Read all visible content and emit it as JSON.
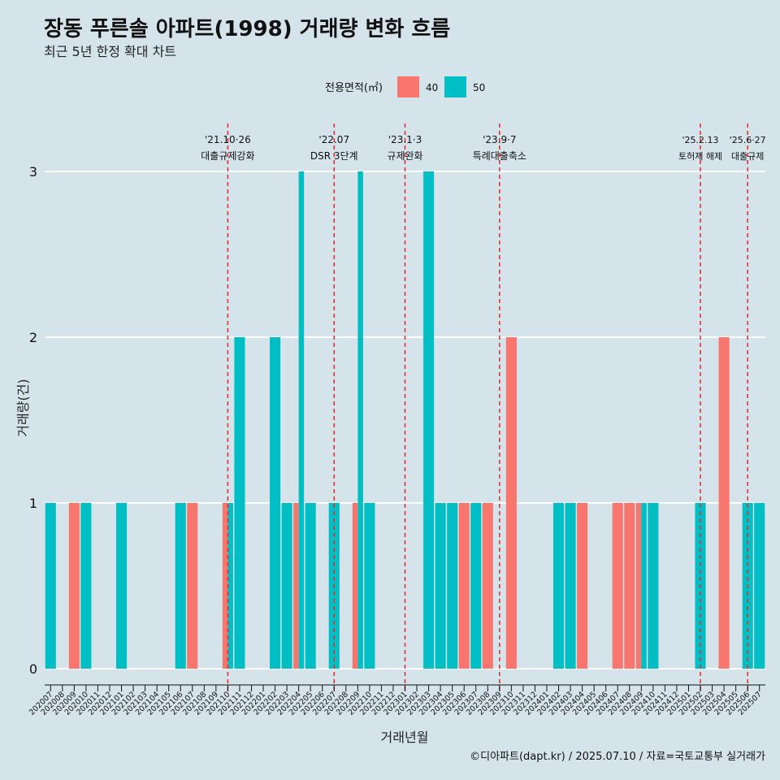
{
  "chart_data": {
    "type": "bar",
    "title": "장동 푸른솔 아파트(1998) 거래량 변화 흐름",
    "subtitle": "최근 5년 한정 확대 차트",
    "xlabel": "거래년월",
    "ylabel": "거래량(건)",
    "ylim": [
      0,
      3
    ],
    "y_ticks": [
      0,
      1,
      2,
      3
    ],
    "legend": {
      "title": "전용면적(㎡)",
      "placement": "top"
    },
    "categories": [
      "202007",
      "202008",
      "202009",
      "202010",
      "202011",
      "202012",
      "202101",
      "202102",
      "202103",
      "202104",
      "202105",
      "202106",
      "202107",
      "202108",
      "202109",
      "202110",
      "202111",
      "202112",
      "202201",
      "202202",
      "202203",
      "202204",
      "202205",
      "202206",
      "202207",
      "202208",
      "202209",
      "202210",
      "202211",
      "202212",
      "202301",
      "202302",
      "202303",
      "202304",
      "202305",
      "202306",
      "202307",
      "202308",
      "202309",
      "202310",
      "202311",
      "202312",
      "202401",
      "202402",
      "202403",
      "202404",
      "202405",
      "202406",
      "202407",
      "202408",
      "202409",
      "202410",
      "202411",
      "202412",
      "202501",
      "202502",
      "202503",
      "202504",
      "202505",
      "202506",
      "202507"
    ],
    "series": [
      {
        "name": "40",
        "color": "#f8766d",
        "values": [
          0,
          0,
          1,
          0,
          0,
          0,
          0,
          0,
          0,
          0,
          0,
          0,
          1,
          0,
          0,
          1,
          0,
          0,
          0,
          0,
          0,
          1,
          0,
          0,
          0,
          0,
          1,
          0,
          0,
          0,
          0,
          0,
          0,
          0,
          0,
          1,
          0,
          1,
          0,
          2,
          0,
          0,
          0,
          0,
          0,
          1,
          0,
          0,
          1,
          1,
          1,
          0,
          0,
          0,
          0,
          0,
          0,
          2,
          0,
          0,
          0
        ]
      },
      {
        "name": "50",
        "color": "#00bfc4",
        "values": [
          1,
          0,
          0,
          1,
          0,
          0,
          1,
          0,
          0,
          0,
          0,
          1,
          0,
          0,
          0,
          1,
          2,
          0,
          0,
          2,
          1,
          3,
          1,
          0,
          1,
          0,
          3,
          1,
          0,
          0,
          0,
          0,
          3,
          1,
          1,
          0,
          1,
          0,
          0,
          0,
          0,
          0,
          0,
          1,
          1,
          0,
          0,
          0,
          0,
          0,
          1,
          1,
          0,
          0,
          0,
          1,
          0,
          0,
          0,
          1,
          1
        ]
      }
    ],
    "annotations": [
      {
        "date_label": "'21.10·26",
        "event": "대출규제강화",
        "x": "202110"
      },
      {
        "date_label": "'22.07",
        "event": "DSR 3단계",
        "x": "202207"
      },
      {
        "date_label": "'23.1·3",
        "event": "규제완화",
        "x": "202301"
      },
      {
        "date_label": "'23.9·7",
        "event": "특례대출축소",
        "x": "202309"
      },
      {
        "date_label": "'25.2.13",
        "event": "토허제 해제",
        "x": "202502"
      },
      {
        "date_label": "'25.6·27",
        "event": "대출규제",
        "x": "202506"
      }
    ],
    "caption": "©디아파트(dapt.kr) / 2025.07.10 / 자료=국토교통부 실거래가",
    "grid": true
  }
}
